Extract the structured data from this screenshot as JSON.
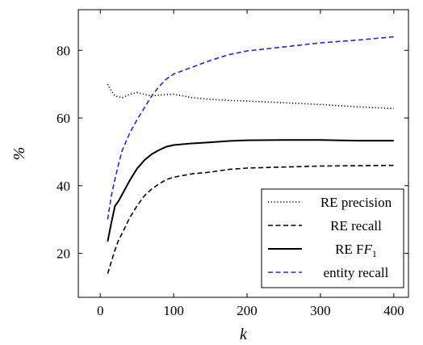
{
  "chart_data": {
    "type": "line",
    "xlabel": "k",
    "ylabel": "%",
    "xlim": [
      -30,
      420
    ],
    "ylim": [
      7,
      92
    ],
    "xticks": [
      0,
      100,
      200,
      300,
      400
    ],
    "yticks": [
      20,
      40,
      60,
      80
    ],
    "grid": false,
    "legend_position": "bottom-right",
    "series": [
      {
        "name": "RE precision",
        "color": "#000000",
        "dash": "dotted",
        "x": [
          10,
          15,
          20,
          30,
          40,
          50,
          60,
          70,
          80,
          100,
          125,
          150,
          175,
          200,
          250,
          300,
          350,
          400
        ],
        "y": [
          70.0,
          68.0,
          66.5,
          66.0,
          67.0,
          67.5,
          67.0,
          66.5,
          66.8,
          67.0,
          66.0,
          65.5,
          65.2,
          65.0,
          64.5,
          64.0,
          63.3,
          62.8
        ]
      },
      {
        "name": "RE recall",
        "color": "#000000",
        "dash": "dashed",
        "x": [
          10,
          15,
          20,
          25,
          30,
          40,
          50,
          60,
          70,
          80,
          90,
          100,
          125,
          150,
          175,
          200,
          250,
          300,
          350,
          400
        ],
        "y": [
          14.0,
          17.5,
          21.0,
          24.0,
          26.0,
          30.5,
          34.0,
          37.0,
          39.0,
          40.5,
          41.8,
          42.5,
          43.5,
          44.0,
          44.8,
          45.2,
          45.5,
          45.8,
          45.9,
          46.0
        ]
      },
      {
        "name": "RE F_1",
        "color": "#000000",
        "dash": "solid",
        "x": [
          10,
          15,
          20,
          25,
          30,
          40,
          50,
          60,
          70,
          80,
          90,
          100,
          125,
          150,
          175,
          200,
          250,
          300,
          350,
          400
        ],
        "y": [
          23.5,
          29.0,
          34.0,
          35.5,
          37.5,
          41.5,
          45.0,
          47.5,
          49.3,
          50.5,
          51.5,
          52.0,
          52.5,
          52.8,
          53.2,
          53.4,
          53.5,
          53.5,
          53.3,
          53.3
        ]
      },
      {
        "name": "entity recall",
        "color": "#2828d2",
        "dash": "dashed",
        "x": [
          10,
          15,
          20,
          25,
          30,
          40,
          50,
          60,
          70,
          80,
          90,
          100,
          125,
          150,
          175,
          200,
          250,
          300,
          350,
          400
        ],
        "y": [
          30.0,
          37.0,
          42.0,
          46.5,
          50.5,
          55.5,
          59.5,
          63.0,
          66.5,
          69.3,
          71.5,
          73.0,
          75.0,
          77.0,
          78.7,
          79.8,
          81.0,
          82.2,
          83.0,
          84.0
        ]
      }
    ]
  }
}
